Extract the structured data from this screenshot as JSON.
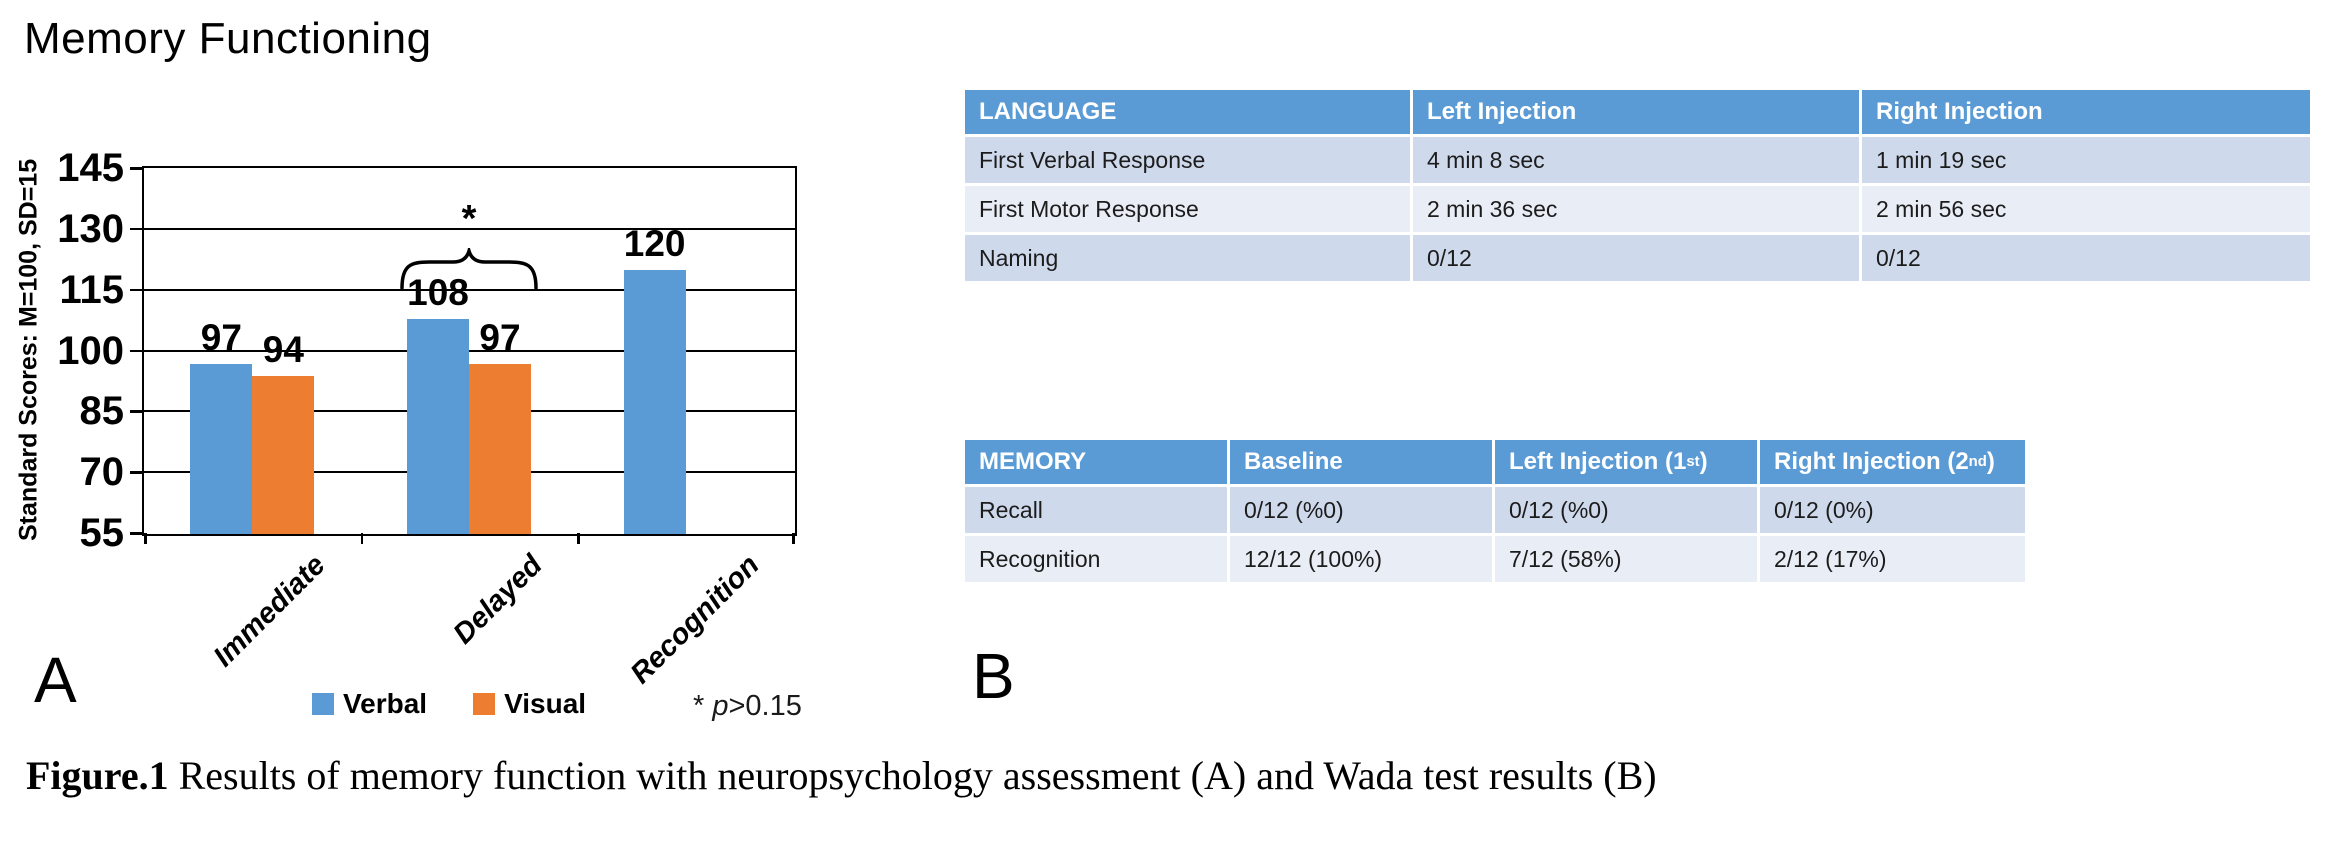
{
  "title": "Memory Functioning",
  "panel_a": "A",
  "panel_b": "B",
  "caption": {
    "label": "Figure.1",
    "text": " Results of memory function with neuropsychology assessment (A) and Wada test results (B)"
  },
  "significance_note": {
    "star": "* ",
    "italic": "p",
    "rest": ">0.15"
  },
  "colors": {
    "bar_blue": "#5B9BD5",
    "bar_orange": "#ED7D31",
    "header_blue": "#5B9BD5",
    "row_dark": "#CFD9EC",
    "row_light": "#E9EDF6"
  },
  "chart_data": [
    {
      "type": "bar",
      "title": "Memory Functioning",
      "xlabel": "",
      "ylabel": "Standard Scores: M=100, SD=15",
      "ylim": [
        55,
        145
      ],
      "yticks": [
        55,
        70,
        85,
        100,
        115,
        130,
        145
      ],
      "grid": true,
      "legend_position": "bottom",
      "categories": [
        "Immediate",
        "Delayed",
        "Recognition"
      ],
      "series": [
        {
          "name": "Verbal",
          "color": "#5B9BD5",
          "values": [
            97,
            108,
            120
          ]
        },
        {
          "name": "Visual",
          "color": "#ED7D31",
          "values": [
            94,
            97,
            null
          ]
        }
      ],
      "annotation": {
        "symbol": "*",
        "category": "Delayed",
        "note": "* p>0.15"
      }
    },
    {
      "type": "table",
      "columns": [
        {
          "t": "LANGUAGE"
        },
        {
          "t": "Left Injection"
        },
        {
          "t": "Right Injection"
        }
      ],
      "rows": [
        [
          "First Verbal Response",
          "4 min 8 sec",
          "1 min 19 sec"
        ],
        [
          "First Motor Response",
          "2 min 36 sec",
          "2 min 56 sec"
        ],
        [
          "Naming",
          "0/12",
          "0/12"
        ]
      ]
    },
    {
      "type": "table",
      "columns": [
        {
          "t": "MEMORY"
        },
        {
          "t": "Baseline"
        },
        {
          "t": "Left Injection (1",
          "sup": "st",
          "e": ")"
        },
        {
          "t": "Right Injection (2",
          "sup": "nd",
          "e": ")"
        }
      ],
      "rows": [
        [
          "Recall",
          "0/12 (%0)",
          "0/12 (%0)",
          "0/12 (0%)"
        ],
        [
          "Recognition",
          "12/12 (100%)",
          "7/12 (58%)",
          "2/12 (17%)"
        ]
      ]
    }
  ]
}
